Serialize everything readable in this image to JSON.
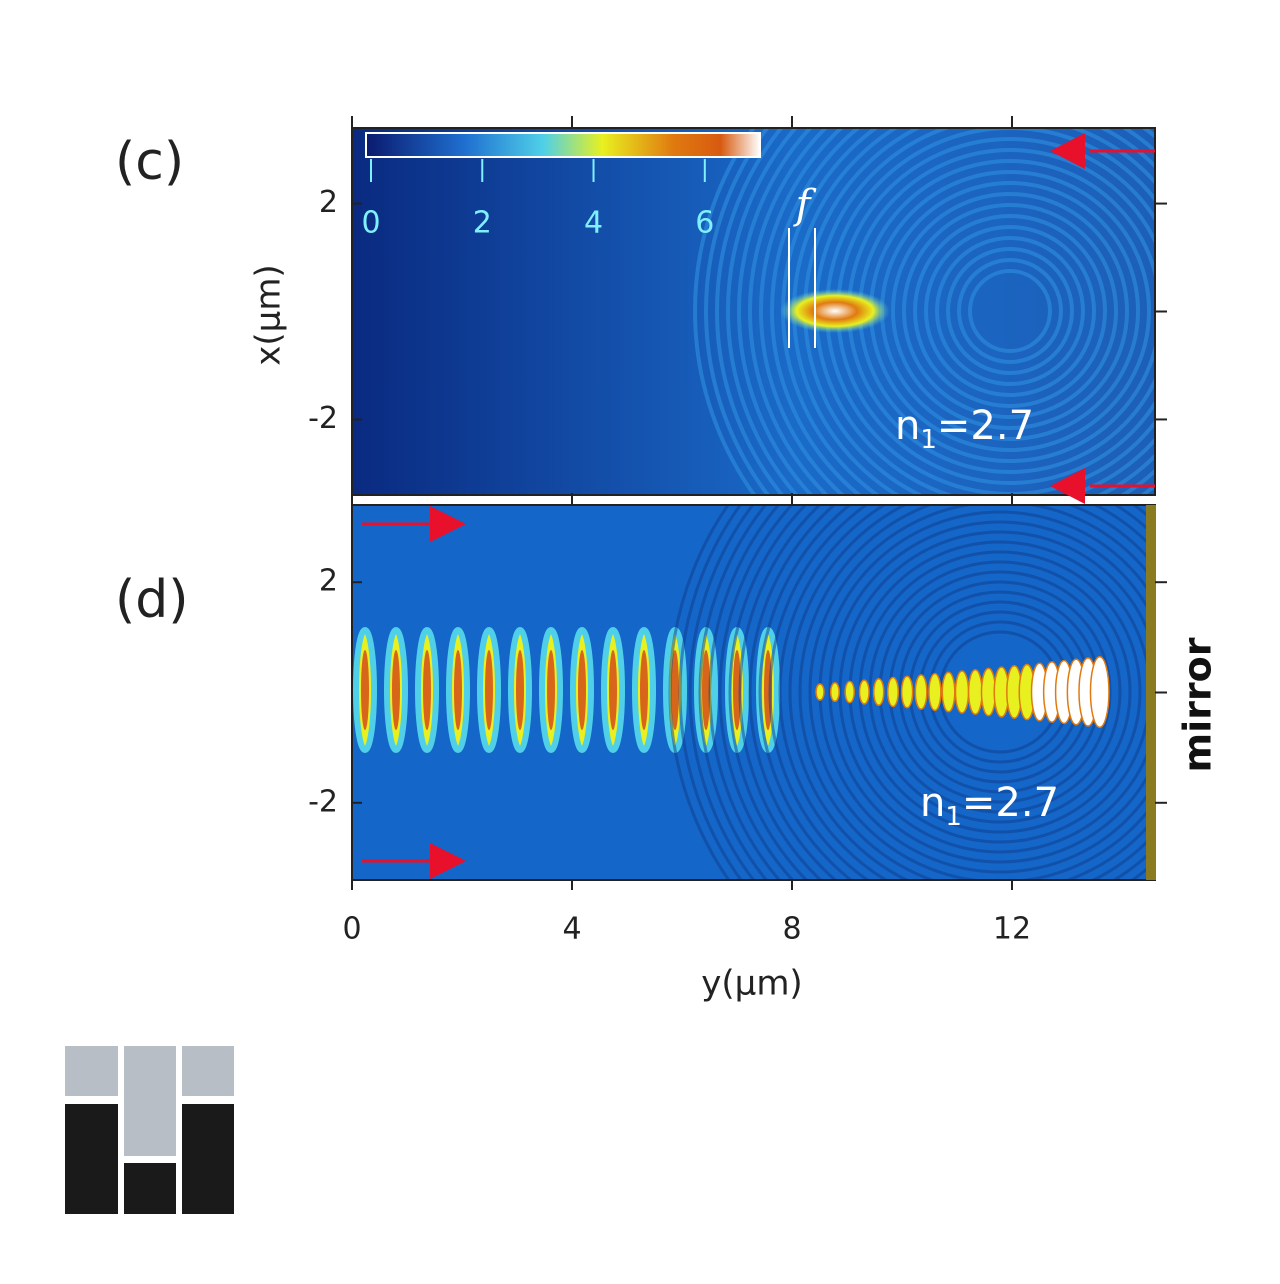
{
  "figure": {
    "panels": [
      {
        "label": "(c)",
        "n_text": "n",
        "n_sub": "1",
        "n_value": "=2.7",
        "focus_label": "f"
      },
      {
        "label": "(d)",
        "n_text": "n",
        "n_sub": "1",
        "n_value": "=2.7",
        "side_label": "mirror"
      }
    ],
    "xaxis": {
      "label": "y(μm)",
      "lim": [
        0,
        14.6
      ],
      "ticks": [
        0,
        4,
        8,
        12
      ]
    },
    "yaxis": {
      "label": "x(μm)",
      "lim": [
        -3.4,
        3.4
      ],
      "ticks": [
        2,
        -2
      ]
    },
    "colorbar": {
      "lim": [
        0,
        7.1
      ],
      "ticks": [
        0,
        2,
        4,
        6
      ]
    }
  }
}
